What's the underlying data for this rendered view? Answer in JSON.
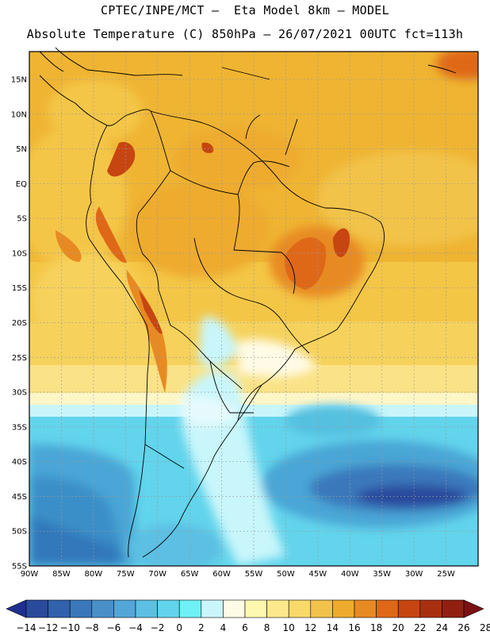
{
  "header": {
    "line1": "CPTEC/INPE/MCT –  Eta Model 8km – MODEL",
    "line2": "Absolute Temperature (C) 850hPa – 26/07/2021 00UTC fct=113h"
  },
  "map": {
    "lon_range": [
      -90,
      -20
    ],
    "lat_range": [
      -55,
      19
    ],
    "lat_labels": [
      "15N",
      "10N",
      "5N",
      "EQ",
      "5S",
      "10S",
      "15S",
      "20S",
      "25S",
      "30S",
      "35S",
      "40S",
      "45S",
      "50S",
      "55S"
    ],
    "lon_labels": [
      "90W",
      "85W",
      "80W",
      "75W",
      "70W",
      "65W",
      "60W",
      "55W",
      "50W",
      "45W",
      "40W",
      "35W",
      "30W",
      "25W"
    ]
  },
  "colorbar": {
    "labels": [
      "-14",
      "-12",
      "-10",
      "-8",
      "-6",
      "-4",
      "-2",
      "0",
      "2",
      "4",
      "6",
      "8",
      "10",
      "12",
      "14",
      "16",
      "18",
      "20",
      "22",
      "24",
      "26",
      "28"
    ],
    "colors": [
      "#1f2f8f",
      "#2a4a9c",
      "#3262ad",
      "#3a78bb",
      "#4a90c8",
      "#54a6d6",
      "#5cbfe3",
      "#62d4ec",
      "#6ff0f7",
      "#c8f6fb",
      "#fffbe6",
      "#fff8b0",
      "#fde98c",
      "#f8d96a",
      "#f2c34a",
      "#eeab2e",
      "#e88a22",
      "#df6818",
      "#c74510",
      "#a83010",
      "#8f2012",
      "#7a1014"
    ]
  }
}
